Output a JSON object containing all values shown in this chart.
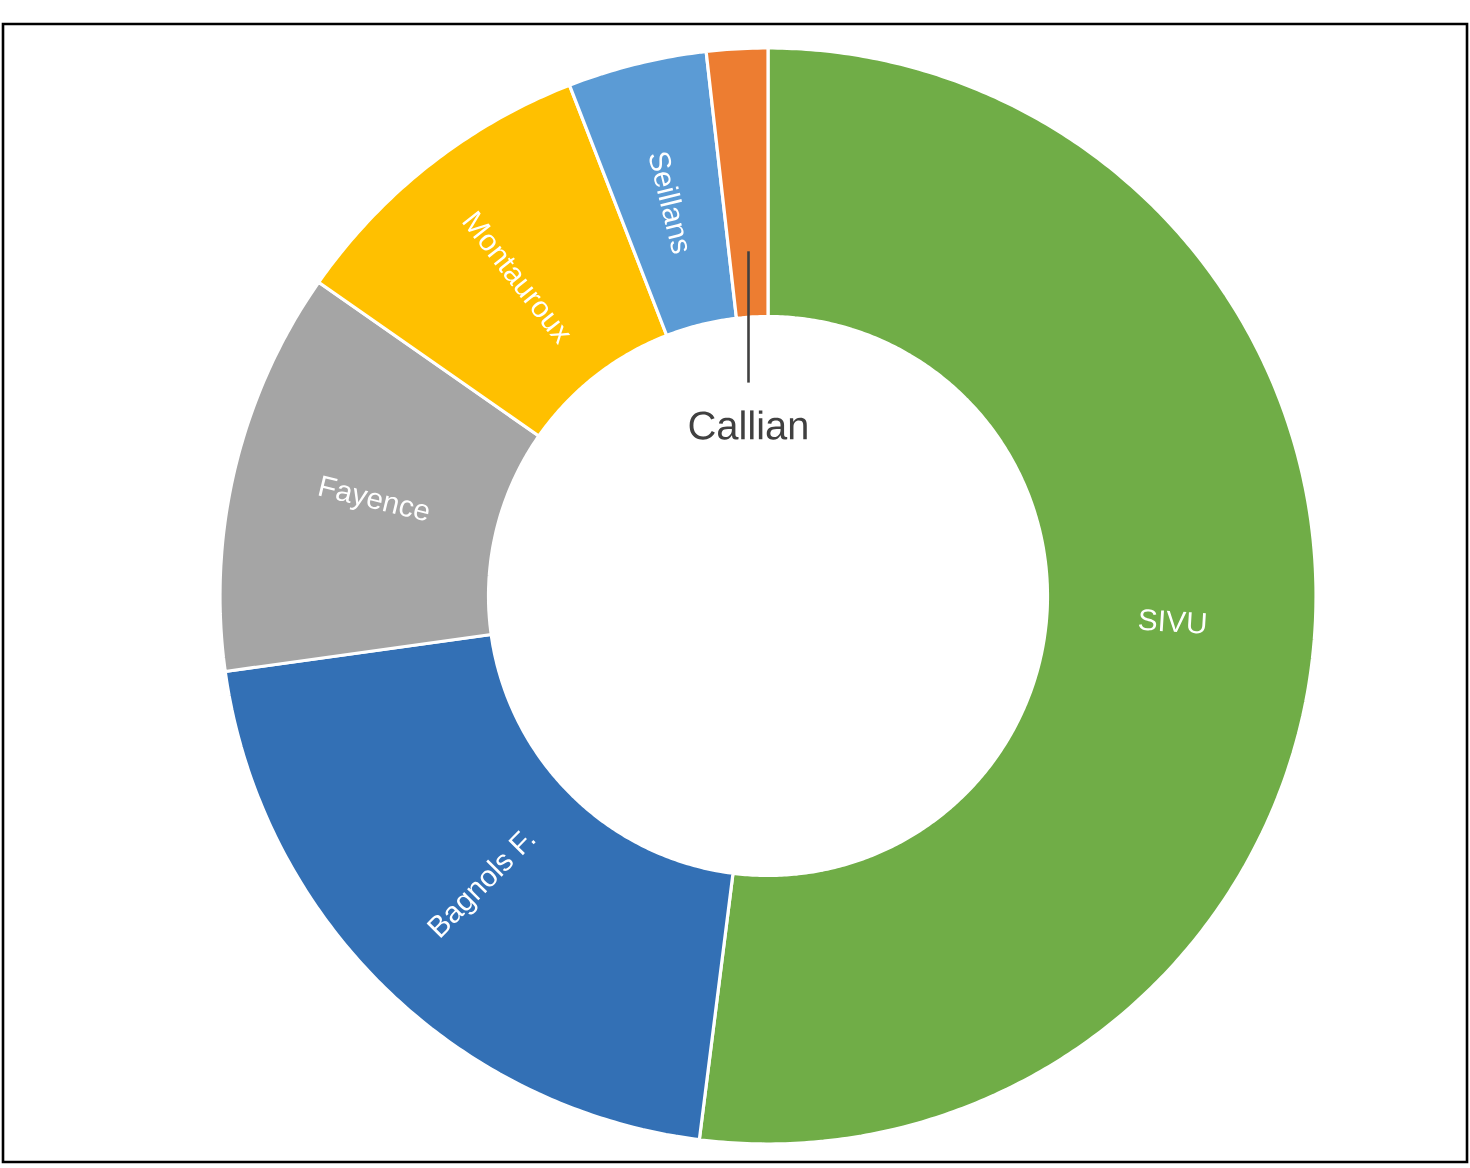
{
  "chart_data": {
    "type": "donut",
    "categories": [
      "SIVU",
      "Bagnols F.",
      "Fayence",
      "Montauroux",
      "Seillans",
      "Callian"
    ],
    "values": [
      52.0,
      20.8,
      11.9,
      9.4,
      4.1,
      1.8
    ],
    "colors": [
      "#70ad47",
      "#3370b5",
      "#a5a5a5",
      "#ffc000",
      "#5b9bd5",
      "#ed7d31"
    ]
  }
}
